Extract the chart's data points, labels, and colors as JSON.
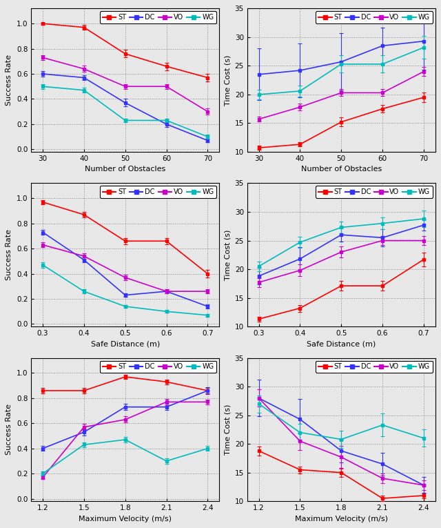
{
  "colors": {
    "ST": "#FF0000",
    "DC": "#3333FF",
    "VO": "#CC00CC",
    "WG": "#00BBBB"
  },
  "bg_color": "#e8e8e8",
  "ax_bg": "#e8e8e8",
  "row0_left": {
    "xlabel": "Number of Obstacles",
    "ylabel": "Success Rate",
    "xvals": [
      30,
      40,
      50,
      60,
      70
    ],
    "ylim": [
      -0.02,
      1.12
    ],
    "yticks": [
      0.0,
      0.2,
      0.4,
      0.6,
      0.8,
      1.0
    ],
    "ST": {
      "y": [
        1.0,
        0.97,
        0.76,
        0.66,
        0.57
      ],
      "yerr": [
        0.008,
        0.02,
        0.03,
        0.03,
        0.03
      ]
    },
    "DC": {
      "y": [
        0.6,
        0.57,
        0.37,
        0.2,
        0.07
      ],
      "yerr": [
        0.02,
        0.02,
        0.03,
        0.02,
        0.015
      ]
    },
    "VO": {
      "y": [
        0.73,
        0.64,
        0.5,
        0.5,
        0.3
      ],
      "yerr": [
        0.02,
        0.025,
        0.02,
        0.02,
        0.025
      ]
    },
    "WG": {
      "y": [
        0.5,
        0.47,
        0.23,
        0.23,
        0.1
      ],
      "yerr": [
        0.02,
        0.02,
        0.015,
        0.015,
        0.015
      ]
    }
  },
  "row0_right": {
    "xlabel": "Number of Obstacles",
    "ylabel": "Time Cost (s)",
    "xvals": [
      30,
      40,
      50,
      60,
      70
    ],
    "ylim": [
      10,
      35
    ],
    "yticks": [
      10,
      15,
      20,
      25,
      30,
      35
    ],
    "ST": {
      "y": [
        10.7,
        11.3,
        15.2,
        17.5,
        19.5
      ],
      "yerr": [
        0.4,
        0.4,
        0.8,
        0.7,
        0.8
      ]
    },
    "DC": {
      "y": [
        23.5,
        24.2,
        25.7,
        28.5,
        29.3
      ],
      "yerr": [
        4.5,
        4.7,
        5.0,
        3.2,
        5.0
      ]
    },
    "VO": {
      "y": [
        15.7,
        17.8,
        20.3,
        20.3,
        24.0
      ],
      "yerr": [
        0.4,
        0.6,
        0.6,
        0.6,
        0.8
      ]
    },
    "WG": {
      "y": [
        20.0,
        20.6,
        25.3,
        25.3,
        28.2
      ],
      "yerr": [
        0.8,
        1.0,
        1.5,
        1.5,
        2.0
      ]
    }
  },
  "row1_left": {
    "xlabel": "Safe Distance (m)",
    "ylabel": "Success Rate",
    "xvals": [
      0.3,
      0.4,
      0.5,
      0.6,
      0.7
    ],
    "ylim": [
      -0.02,
      1.12
    ],
    "yticks": [
      0.0,
      0.2,
      0.4,
      0.6,
      0.8,
      1.0
    ],
    "ST": {
      "y": [
        0.97,
        0.87,
        0.66,
        0.66,
        0.4
      ],
      "yerr": [
        0.015,
        0.02,
        0.025,
        0.025,
        0.03
      ]
    },
    "DC": {
      "y": [
        0.73,
        0.51,
        0.23,
        0.26,
        0.14
      ],
      "yerr": [
        0.02,
        0.02,
        0.015,
        0.015,
        0.015
      ]
    },
    "VO": {
      "y": [
        0.63,
        0.54,
        0.37,
        0.26,
        0.26
      ],
      "yerr": [
        0.02,
        0.02,
        0.02,
        0.015,
        0.015
      ]
    },
    "WG": {
      "y": [
        0.47,
        0.26,
        0.14,
        0.1,
        0.07
      ],
      "yerr": [
        0.02,
        0.015,
        0.012,
        0.01,
        0.01
      ]
    }
  },
  "row1_right": {
    "xlabel": "Safe Distance (m)",
    "ylabel": "Time Cost (s)",
    "xvals": [
      0.3,
      0.4,
      0.5,
      0.6,
      0.7
    ],
    "ylim": [
      10,
      35
    ],
    "yticks": [
      10,
      15,
      20,
      25,
      30,
      35
    ],
    "ST": {
      "y": [
        11.3,
        13.2,
        17.1,
        17.1,
        21.7
      ],
      "yerr": [
        0.4,
        0.6,
        0.8,
        0.8,
        1.2
      ]
    },
    "DC": {
      "y": [
        18.8,
        21.8,
        26.0,
        25.5,
        27.7
      ],
      "yerr": [
        1.5,
        2.0,
        1.2,
        1.5,
        1.0
      ]
    },
    "VO": {
      "y": [
        17.7,
        19.8,
        23.0,
        25.0,
        25.0
      ],
      "yerr": [
        0.8,
        1.0,
        1.0,
        0.8,
        0.8
      ]
    },
    "WG": {
      "y": [
        20.5,
        24.7,
        27.3,
        28.0,
        28.8
      ],
      "yerr": [
        0.8,
        1.0,
        1.0,
        1.0,
        1.5
      ]
    }
  },
  "row2_left": {
    "xlabel": "Maximum Velocity (m/s)",
    "ylabel": "Success Rate",
    "xvals": [
      1.2,
      1.5,
      1.8,
      2.1,
      2.4
    ],
    "ylim": [
      -0.02,
      1.12
    ],
    "yticks": [
      0.0,
      0.2,
      0.4,
      0.6,
      0.8,
      1.0
    ],
    "ST": {
      "y": [
        0.86,
        0.86,
        0.97,
        0.93,
        0.86
      ],
      "yerr": [
        0.02,
        0.02,
        0.015,
        0.02,
        0.02
      ]
    },
    "DC": {
      "y": [
        0.4,
        0.53,
        0.73,
        0.73,
        0.86
      ],
      "yerr": [
        0.02,
        0.025,
        0.025,
        0.025,
        0.025
      ]
    },
    "VO": {
      "y": [
        0.17,
        0.57,
        0.63,
        0.77,
        0.77
      ],
      "yerr": [
        0.015,
        0.025,
        0.025,
        0.025,
        0.02
      ]
    },
    "WG": {
      "y": [
        0.2,
        0.43,
        0.47,
        0.3,
        0.4
      ],
      "yerr": [
        0.015,
        0.02,
        0.02,
        0.02,
        0.02
      ]
    }
  },
  "row2_right": {
    "xlabel": "Maximum Velocity (m/s)",
    "ylabel": "Time Cost (s)",
    "xvals": [
      1.2,
      1.5,
      1.8,
      2.1,
      2.4
    ],
    "ylim": [
      10,
      35
    ],
    "yticks": [
      10,
      15,
      20,
      25,
      30,
      35
    ],
    "ST": {
      "y": [
        18.8,
        15.5,
        15.0,
        10.5,
        11.0
      ],
      "yerr": [
        0.8,
        0.6,
        0.8,
        0.5,
        0.5
      ]
    },
    "DC": {
      "y": [
        28.0,
        24.3,
        18.8,
        16.5,
        12.8
      ],
      "yerr": [
        3.2,
        3.5,
        2.0,
        2.0,
        1.5
      ]
    },
    "VO": {
      "y": [
        28.0,
        20.5,
        17.7,
        14.0,
        12.8
      ],
      "yerr": [
        1.5,
        1.5,
        2.0,
        0.8,
        0.8
      ]
    },
    "WG": {
      "y": [
        27.0,
        22.0,
        20.8,
        23.3,
        21.0
      ],
      "yerr": [
        1.5,
        1.5,
        1.5,
        2.0,
        1.5
      ]
    }
  }
}
